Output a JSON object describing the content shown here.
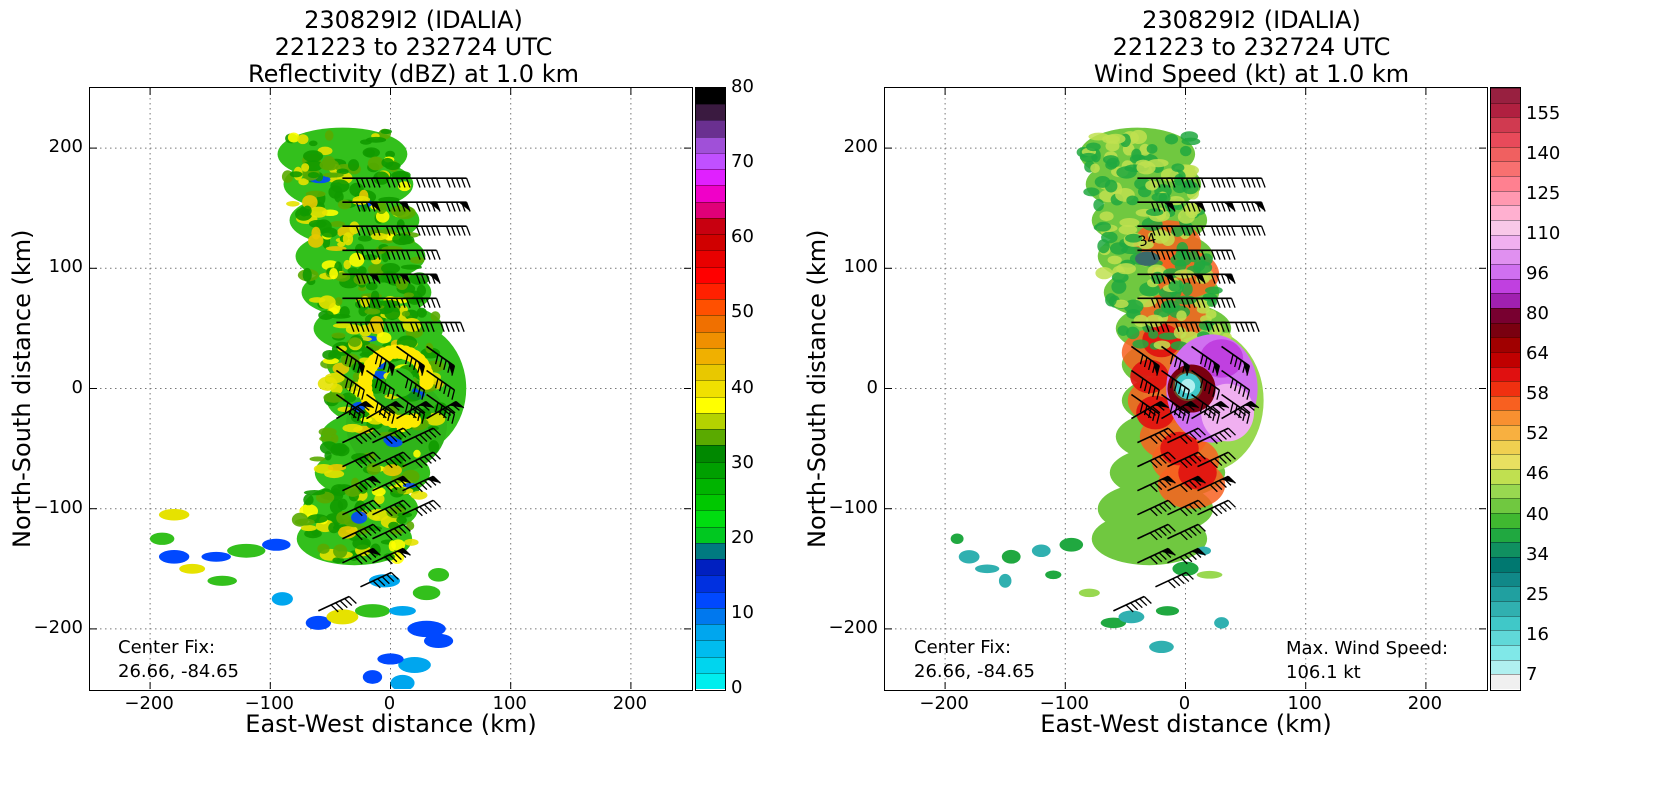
{
  "chart_data": [
    {
      "type": "heatmap",
      "panel": "left",
      "title_lines": [
        "230829I2 (IDALIA)",
        "221223 to 232724 UTC",
        "Reflectivity (dBZ) at 1.0 km"
      ],
      "xlabel": "East-West distance (km)",
      "ylabel": "North-South distance (km)",
      "xlim": [
        -250,
        250
      ],
      "ylim": [
        -250,
        250
      ],
      "xticks": [
        -200,
        -100,
        0,
        100,
        200
      ],
      "yticks": [
        -200,
        -100,
        0,
        100,
        200
      ],
      "xtick_labels": [
        "−200",
        "−100",
        "0",
        "100",
        "200"
      ],
      "ytick_labels": [
        "200",
        "100",
        "0",
        "−100",
        "−200"
      ],
      "grid": true,
      "annotations": [
        "Center Fix:",
        "26.66, -84.65"
      ],
      "center": [
        0,
        0
      ],
      "colorbar": {
        "min": 0,
        "max": 80,
        "tick_values": [
          0,
          10,
          20,
          30,
          40,
          50,
          60,
          70,
          80
        ],
        "tick_labels": [
          "0",
          "10",
          "20",
          "30",
          "40",
          "50",
          "60",
          "70",
          "80"
        ],
        "colors": [
          "#00eeee",
          "#00d5ee",
          "#00bcee",
          "#00a6ee",
          "#0078ee",
          "#0048ff",
          "#0030e0",
          "#0020c0",
          "#007a80",
          "#00c820",
          "#00dd10",
          "#00c800",
          "#00b400",
          "#00a000",
          "#008800",
          "#5aaa00",
          "#b4d200",
          "#ffff00",
          "#f0e000",
          "#e8c800",
          "#f0b000",
          "#f09000",
          "#f07000",
          "#ff5000",
          "#ff2000",
          "#ff0000",
          "#e80000",
          "#d00000",
          "#c80010",
          "#e00078",
          "#f000c8",
          "#e020ff",
          "#c050ff",
          "#a050d8",
          "#6a3090",
          "#3a1a40",
          "#000000"
        ]
      },
      "field_layer": "reflectivity",
      "barbs": true
    },
    {
      "type": "heatmap",
      "panel": "right",
      "title_lines": [
        "230829I2 (IDALIA)",
        "221223 to 232724 UTC",
        "Wind Speed (kt) at 1.0 km"
      ],
      "xlabel": "East-West distance (km)",
      "ylabel": "North-South distance (km)",
      "xlim": [
        -250,
        250
      ],
      "ylim": [
        -250,
        250
      ],
      "xticks": [
        -200,
        -100,
        0,
        100,
        200
      ],
      "yticks": [
        -200,
        -100,
        0,
        100,
        200
      ],
      "xtick_labels": [
        "−200",
        "−100",
        "0",
        "100",
        "200"
      ],
      "ytick_labels": [
        "200",
        "100",
        "0",
        "−100",
        "−200"
      ],
      "grid": true,
      "annotations": [
        "Center Fix:",
        "26.66, -84.65"
      ],
      "max_wind_label": [
        "Max. Wind Speed:",
        "106.1 kt"
      ],
      "center": [
        0,
        0
      ],
      "contour_label": "34",
      "colorbar": {
        "tick_labels": [
          "7",
          "16",
          "25",
          "34",
          "40",
          "46",
          "52",
          "58",
          "64",
          "80",
          "96",
          "110",
          "125",
          "140",
          "155"
        ],
        "colors": [
          "#f0f0f0",
          "#b0f0f0",
          "#80e8e8",
          "#60d8d8",
          "#40c8c8",
          "#30b0b0",
          "#20a0a0",
          "#108888",
          "#007870",
          "#109060",
          "#20a840",
          "#40b830",
          "#70c840",
          "#98d850",
          "#c0e050",
          "#e8e060",
          "#f0d050",
          "#f8b040",
          "#f89030",
          "#f86020",
          "#f03010",
          "#e01010",
          "#c00000",
          "#a00000",
          "#7a0010",
          "#780030",
          "#a020b0",
          "#c040e0",
          "#d070f0",
          "#e090f0",
          "#f0b0f0",
          "#f8c8e8",
          "#ffb0d0",
          "#ff98b0",
          "#ff8090",
          "#f87070",
          "#f06060",
          "#e84a5a",
          "#d03a50",
          "#b02040",
          "#982040"
        ]
      },
      "field_layer": "windspeed",
      "barbs": true
    }
  ]
}
